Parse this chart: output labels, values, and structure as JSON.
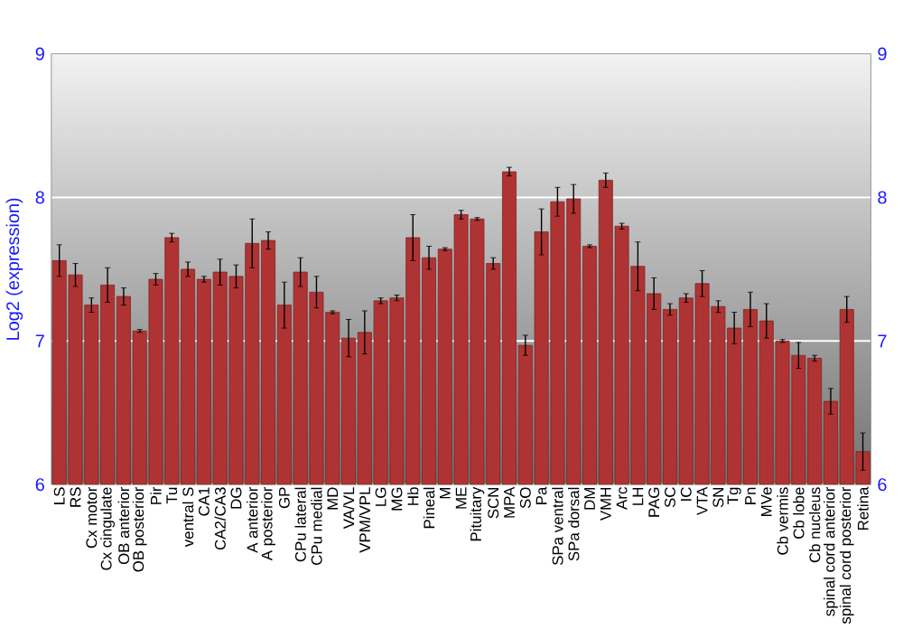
{
  "chart_data": {
    "type": "bar",
    "ylabel": "Log2 (expression)",
    "categories": [
      "LS",
      "RS",
      "Cx motor",
      "Cx cingulate",
      "OB anterior",
      "OB posterior",
      "Pir",
      "Tu",
      "ventral S",
      "CA1",
      "CA2/CA3",
      "DG",
      "A anterior",
      "A posterior",
      "GP",
      "CPu lateral",
      "CPu medial",
      "MD",
      "VA/VL",
      "VPM/VPL",
      "LG",
      "MG",
      "Hb",
      "Pineal",
      "M",
      "ME",
      "Pituitary",
      "SCN",
      "MPA",
      "SO",
      "Pa",
      "SPa ventral",
      "SPa dorsal",
      "DM",
      "VMH",
      "Arc",
      "LH",
      "PAG",
      "SC",
      "IC",
      "VTA",
      "SN",
      "Tg",
      "Pn",
      "MVe",
      "Cb vermis",
      "Cb lobe",
      "Cb nucleus",
      "spinal cord anterior",
      "spinal cord posterior",
      "Retina"
    ],
    "values": [
      7.56,
      7.46,
      7.25,
      7.39,
      7.31,
      7.07,
      7.43,
      7.72,
      7.5,
      7.43,
      7.48,
      7.45,
      7.68,
      7.7,
      7.25,
      7.48,
      7.34,
      7.2,
      7.02,
      7.06,
      7.28,
      7.3,
      7.72,
      7.58,
      7.64,
      7.88,
      7.85,
      7.54,
      8.18,
      6.97,
      7.76,
      7.97,
      7.99,
      7.66,
      8.12,
      7.8,
      7.52,
      7.33,
      7.22,
      7.3,
      7.4,
      7.24,
      7.09,
      7.22,
      7.14,
      7.0,
      6.9,
      6.88,
      6.58,
      7.22,
      6.23
    ],
    "errors": [
      0.11,
      0.08,
      0.05,
      0.12,
      0.06,
      0.01,
      0.04,
      0.03,
      0.05,
      0.02,
      0.09,
      0.08,
      0.17,
      0.06,
      0.16,
      0.1,
      0.11,
      0.01,
      0.13,
      0.15,
      0.02,
      0.02,
      0.16,
      0.08,
      0.01,
      0.03,
      0.01,
      0.04,
      0.03,
      0.07,
      0.16,
      0.1,
      0.1,
      0.01,
      0.05,
      0.02,
      0.17,
      0.11,
      0.04,
      0.03,
      0.09,
      0.04,
      0.11,
      0.12,
      0.12,
      0.01,
      0.09,
      0.02,
      0.09,
      0.09,
      0.13
    ],
    "color": "#b03333",
    "ylim": [
      6,
      9
    ],
    "yticks": [
      6,
      7,
      8,
      9
    ],
    "y2lim": [
      6,
      9
    ],
    "y2ticks": [
      6,
      7,
      8,
      9
    ],
    "grid": "y"
  }
}
